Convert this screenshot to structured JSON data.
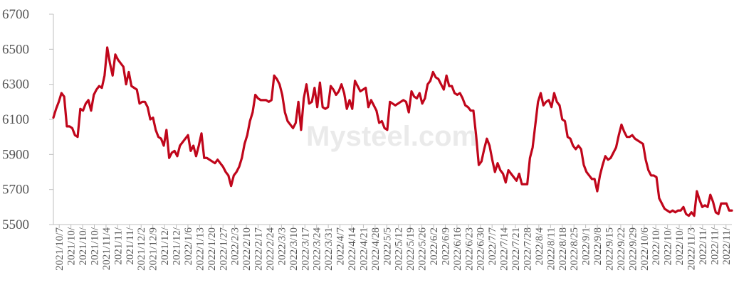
{
  "chart_data": {
    "type": "line",
    "title": "",
    "xlabel": "",
    "ylabel": "",
    "ylim": [
      5500,
      6700
    ],
    "yticks": [
      5500,
      5700,
      5900,
      6100,
      6300,
      6500,
      6700
    ],
    "grid": false,
    "legend": "none",
    "line_color": "#C0061B",
    "watermark": "Mysteel.com",
    "x_ticks": [
      "2021/10/7",
      "2021/10/",
      "2021/10/",
      "2021/10/",
      "2021/11/4",
      "2021/11/",
      "2021/11/",
      "2021/12/2",
      "2021/12/9",
      "2021/12/",
      "2021/12/",
      "2022/1/6",
      "2022/1/13",
      "2022/1/20",
      "2022/1/27",
      "2022/2/3",
      "2022/2/10",
      "2022/2/17",
      "2022/2/24",
      "2022/3/3",
      "2022/3/10",
      "2022/3/17",
      "2022/3/24",
      "2022/3/31",
      "2022/4/7",
      "2022/4/14",
      "2022/4/21",
      "2022/4/28",
      "2022/5/5",
      "2022/5/12",
      "2022/5/19",
      "2022/5/26",
      "2022/6/2",
      "2022/6/9",
      "2022/6/16",
      "2022/6/23",
      "2022/6/30",
      "2022/7/7",
      "2022/7/14",
      "2022/7/21",
      "2022/7/28",
      "2022/8/4",
      "2022/8/11",
      "2022/8/18",
      "2022/8/25",
      "2022/9/1",
      "2022/9/8",
      "2022/9/15",
      "2022/9/22",
      "2022/9/29",
      "2022/10/6",
      "2022/10/",
      "2022/10/",
      "2022/10/",
      "2022/11/3",
      "2022/11/",
      "2022/11/",
      "2022/11/"
    ],
    "series": [
      {
        "color": "#C0061B",
        "values": [
          6110,
          6160,
          6200,
          6250,
          6230,
          6060,
          6060,
          6050,
          6010,
          6000,
          6160,
          6150,
          6190,
          6210,
          6150,
          6240,
          6270,
          6290,
          6280,
          6350,
          6510,
          6420,
          6350,
          6470,
          6440,
          6420,
          6400,
          6300,
          6370,
          6290,
          6280,
          6270,
          6190,
          6200,
          6200,
          6170,
          6100,
          6110,
          6040,
          6000,
          5990,
          5950,
          6040,
          5880,
          5910,
          5920,
          5890,
          5950,
          5970,
          5990,
          6010,
          5920,
          5950,
          5890,
          5950,
          6020,
          5880,
          5880,
          5870,
          5860,
          5850,
          5870,
          5850,
          5830,
          5800,
          5780,
          5720,
          5780,
          5800,
          5830,
          5880,
          5960,
          6010,
          6090,
          6140,
          6240,
          6220,
          6210,
          6210,
          6210,
          6200,
          6210,
          6350,
          6330,
          6300,
          6240,
          6140,
          6090,
          6070,
          6050,
          6080,
          6200,
          6040,
          6220,
          6300,
          6190,
          6200,
          6280,
          6170,
          6310,
          6170,
          6160,
          6170,
          6290,
          6270,
          6240,
          6260,
          6300,
          6250,
          6160,
          6210,
          6160,
          6320,
          6290,
          6260,
          6270,
          6280,
          6170,
          6210,
          6180,
          6150,
          6080,
          6090,
          6050,
          6040,
          6200,
          6190,
          6180,
          6190,
          6200,
          6210,
          6200,
          6140,
          6260,
          6230,
          6220,
          6250,
          6190,
          6220,
          6300,
          6320,
          6370,
          6340,
          6330,
          6300,
          6270,
          6350,
          6290,
          6290,
          6250,
          6240,
          6250,
          6220,
          6180,
          6170,
          6150,
          6150,
          6010,
          5840,
          5860,
          5930,
          5990,
          5950,
          5870,
          5800,
          5850,
          5810,
          5790,
          5740,
          5810,
          5790,
          5770,
          5750,
          5790,
          5730,
          5730,
          5730,
          5880,
          5940,
          6070,
          6200,
          6250,
          6180,
          6200,
          6210,
          6170,
          6250,
          6200,
          6180,
          6100,
          6090,
          6000,
          5990,
          5950,
          5930,
          5950,
          5930,
          5840,
          5800,
          5780,
          5760,
          5760,
          5690,
          5780,
          5840,
          5890,
          5870,
          5880,
          5910,
          5940,
          6010,
          6070,
          6030,
          6000,
          6000,
          6010,
          5990,
          5980,
          5970,
          5960,
          5870,
          5810,
          5780,
          5780,
          5770,
          5650,
          5620,
          5590,
          5580,
          5570,
          5580,
          5570,
          5580,
          5580,
          5600,
          5560,
          5550,
          5570,
          5550,
          5690,
          5640,
          5600,
          5610,
          5600,
          5670,
          5630,
          5570,
          5560,
          5620,
          5620,
          5620,
          5580,
          5580
        ]
      }
    ]
  }
}
